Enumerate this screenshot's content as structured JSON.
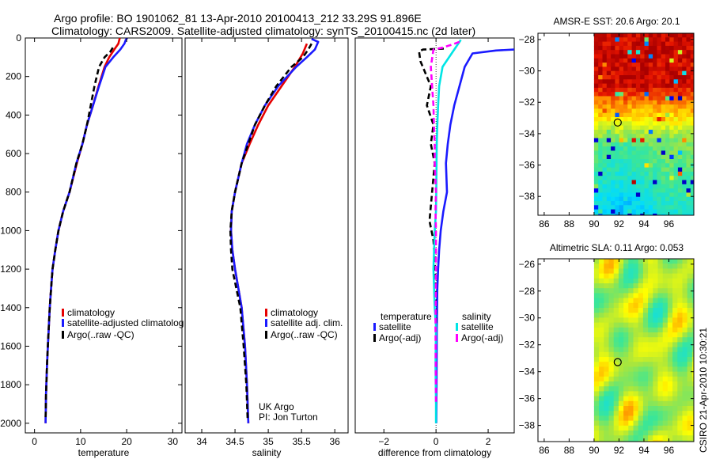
{
  "header": {
    "line1": "Argo profile: BO 1901062_81 13-Apr-2010 20100413_212 33.29S 91.896E",
    "line2": "Climatology: CARS2009. Satellite-adjusted climatology: synTS_20100415.nc (2d later)"
  },
  "stamp": "CSIRO 21-Apr-2010 10:30:21",
  "colors": {
    "climatology": "#e60000",
    "satellite": "#1a1aff",
    "argo": "#000000",
    "sal_satellite": "#00e5e5",
    "sal_argo": "#ff00ff"
  },
  "chart_data": [
    {
      "type": "line",
      "id": "temperature",
      "xlabel": "temperature",
      "ylabel": "",
      "xlim": [
        -2,
        32
      ],
      "ylim": [
        2050,
        0
      ],
      "xticks": [
        0,
        10,
        20,
        30
      ],
      "yticks": [
        0,
        200,
        400,
        600,
        800,
        1000,
        1200,
        1400,
        1600,
        1800,
        2000
      ],
      "legend": [
        "climatology",
        "satellite-adjusted climatolog",
        "Argo(..raw -QC)"
      ],
      "series": [
        {
          "name": "climatology",
          "style": "solid",
          "x": [
            18.5,
            18.2,
            17.3,
            16.2,
            15.2,
            13.9,
            12.7,
            11.4,
            10.4,
            9.2,
            7.6,
            6.2,
            5.2,
            4.5,
            3.9,
            3.6,
            3.3,
            3.1,
            2.9,
            2.7,
            2.5,
            2.4
          ],
          "y": [
            0,
            30,
            60,
            100,
            150,
            250,
            350,
            450,
            550,
            650,
            800,
            900,
            1000,
            1100,
            1200,
            1300,
            1400,
            1500,
            1600,
            1700,
            1850,
            2000
          ]
        },
        {
          "name": "satellite-adjusted climatology",
          "style": "solid",
          "x": [
            20.1,
            19.8,
            19.5,
            18.6,
            17.1,
            15.4,
            14.0,
            12.7,
            11.4,
            10.4,
            9.1,
            7.6,
            6.2,
            5.2,
            4.5,
            3.9,
            3.6,
            3.3,
            3.1,
            2.9,
            2.7,
            2.5,
            2.4
          ],
          "y": [
            0,
            10,
            30,
            60,
            100,
            150,
            250,
            350,
            450,
            550,
            650,
            800,
            900,
            1000,
            1100,
            1200,
            1300,
            1400,
            1500,
            1600,
            1700,
            1850,
            2000
          ]
        },
        {
          "name": "Argo(..raw -QC)",
          "style": "dashed",
          "x": [
            17.0,
            16.5,
            15.2,
            14.0,
            13.0,
            12.2,
            11.4,
            10.4,
            9.1,
            7.6,
            6.2,
            5.2,
            4.5,
            3.9,
            3.6,
            3.3,
            3.1,
            2.9,
            2.7,
            2.5,
            2.4
          ],
          "y": [
            50,
            70,
            100,
            150,
            250,
            350,
            450,
            550,
            650,
            800,
            900,
            1000,
            1100,
            1200,
            1300,
            1400,
            1500,
            1600,
            1700,
            1850,
            1980
          ]
        }
      ],
      "annotations": []
    },
    {
      "type": "line",
      "id": "salinity",
      "xlabel": "salinity",
      "ylabel": "",
      "xlim": [
        33.75,
        36.2
      ],
      "ylim": [
        2050,
        0
      ],
      "xticks": [
        34,
        34.5,
        35,
        35.5,
        36
      ],
      "yticks": [],
      "legend": [
        "climatology",
        "satellite adj. clim.",
        "Argo(..raw -QC)"
      ],
      "series": [
        {
          "name": "climatology",
          "style": "solid",
          "x": [
            35.58,
            35.52,
            35.4,
            35.2,
            35.0,
            34.85,
            34.72,
            34.6,
            34.5,
            34.45,
            34.44,
            34.46,
            34.5,
            34.55,
            34.6,
            34.65,
            34.68,
            34.7
          ],
          "y": [
            30,
            80,
            150,
            250,
            350,
            450,
            550,
            650,
            800,
            900,
            1000,
            1100,
            1200,
            1300,
            1400,
            1600,
            1800,
            2000
          ]
        },
        {
          "name": "satellite adj. clim.",
          "style": "solid",
          "x": [
            35.65,
            35.75,
            35.7,
            35.58,
            35.42,
            35.15,
            34.95,
            34.8,
            34.68,
            34.6,
            34.5,
            34.45,
            34.44,
            34.46,
            34.5,
            34.55,
            34.6,
            34.65,
            34.68,
            34.7
          ],
          "y": [
            5,
            20,
            60,
            100,
            150,
            250,
            350,
            450,
            550,
            650,
            800,
            900,
            1000,
            1100,
            1200,
            1300,
            1400,
            1600,
            1800,
            2000
          ]
        },
        {
          "name": "Argo(..raw -QC)",
          "style": "dashed",
          "x": [
            35.65,
            35.6,
            35.52,
            35.35,
            35.12,
            34.95,
            34.8,
            34.7,
            34.6,
            34.5,
            34.45,
            34.43,
            34.44,
            34.46,
            34.52,
            34.58,
            34.63,
            34.67,
            34.69
          ],
          "y": [
            30,
            60,
            100,
            150,
            250,
            350,
            450,
            550,
            650,
            800,
            900,
            1000,
            1100,
            1200,
            1300,
            1400,
            1600,
            1800,
            1980
          ]
        }
      ],
      "annotations": [
        "UK Argo",
        "PI: Jon Turton"
      ]
    },
    {
      "type": "line",
      "id": "difference",
      "xlabel": "difference from climatology",
      "ylabel": "",
      "xlim": [
        -3.1,
        3.0
      ],
      "ylim": [
        2050,
        0
      ],
      "xticks": [
        -2,
        0,
        2
      ],
      "yticks": [],
      "legend_groups": [
        {
          "title": "temperature",
          "items": [
            "satellite",
            "Argo(-adj)"
          ]
        },
        {
          "title": "salinity",
          "items": [
            "satellite",
            "Argo(-adj)"
          ]
        }
      ],
      "series": [
        {
          "name": "temperature satellite",
          "style": "solid",
          "x": [
            3.0,
            2.3,
            1.4,
            1.1,
            0.9,
            0.7,
            0.55,
            0.45,
            0.38,
            0.42,
            0.28,
            0.18,
            0.12,
            0.08,
            0.05,
            0.03,
            0.02,
            0.01
          ],
          "y": [
            60,
            65,
            80,
            150,
            250,
            350,
            450,
            550,
            650,
            800,
            900,
            1000,
            1100,
            1200,
            1300,
            1500,
            1800,
            2000
          ]
        },
        {
          "name": "temperature Argo(-adj)",
          "style": "dashed",
          "x": [
            0.3,
            -0.5,
            -0.65,
            -0.6,
            -0.2,
            -0.35,
            -0.1,
            -0.2,
            -0.05,
            -0.15,
            -0.25,
            -0.1,
            -0.05,
            -0.02,
            0.0
          ],
          "y": [
            55,
            60,
            70,
            120,
            250,
            350,
            450,
            550,
            650,
            800,
            950,
            1050,
            1150,
            1300,
            1500
          ]
        },
        {
          "name": "salinity satellite",
          "style": "solid",
          "x": [
            0.95,
            0.6,
            0.25,
            0.12,
            0.08,
            0.05,
            0.03,
            0.02,
            0.01,
            0.0,
            -0.05,
            -0.1,
            -0.05,
            0.0,
            -0.02,
            0.0,
            0.0
          ],
          "y": [
            10,
            80,
            150,
            250,
            350,
            450,
            550,
            650,
            800,
            900,
            1000,
            1200,
            1400,
            1500,
            1700,
            1900,
            2000
          ]
        },
        {
          "name": "salinity Argo(-adj)",
          "style": "dashed",
          "x": [
            0.9,
            0.6,
            0.25,
            -0.1,
            -0.2,
            -0.15,
            -0.1,
            -0.08,
            -0.05,
            -0.05,
            0.0,
            -0.02,
            0.0,
            0.0,
            -0.02,
            0.0
          ],
          "y": [
            20,
            35,
            50,
            60,
            150,
            250,
            350,
            450,
            550,
            650,
            800,
            900,
            1000,
            1200,
            1500,
            1900
          ]
        }
      ]
    },
    {
      "type": "heatmap",
      "id": "sst",
      "title": "AMSR-E SST: 20.6 Argo: 20.1",
      "xlim": [
        85.5,
        98
      ],
      "ylim": [
        -39.2,
        -27.6
      ],
      "xticks": [
        86,
        88,
        90,
        92,
        94,
        96
      ],
      "yticks": [
        -28,
        -30,
        -32,
        -34,
        -36,
        -38
      ],
      "data_xlim": [
        90,
        98
      ],
      "marker": {
        "lon": 91.896,
        "lat": -33.29
      }
    },
    {
      "type": "heatmap",
      "id": "sla",
      "title": "Altimetric SLA: 0.11 Argo: 0.053",
      "xlim": [
        85.5,
        98
      ],
      "ylim": [
        -39.2,
        -25.6
      ],
      "xticks": [
        86,
        88,
        90,
        92,
        94,
        96
      ],
      "yticks": [
        -26,
        -28,
        -30,
        -32,
        -34,
        -36,
        -38
      ],
      "data_xlim": [
        90,
        98
      ],
      "marker": {
        "lon": 91.896,
        "lat": -33.29
      }
    }
  ]
}
